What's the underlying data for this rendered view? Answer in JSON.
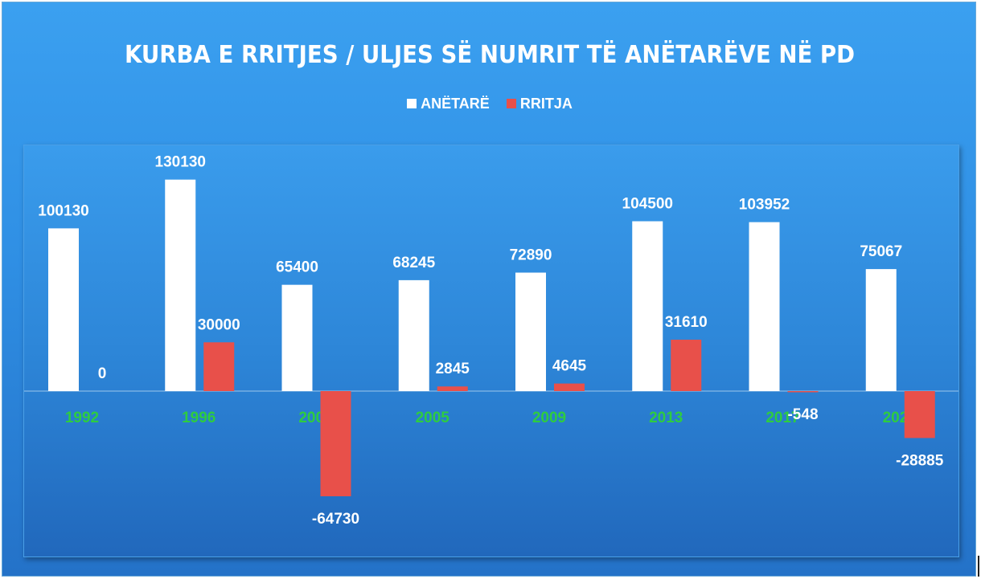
{
  "chart_data": {
    "type": "bar",
    "title": "KURBA E RRITJES / ULJES SË NUMRIT TË ANËTARËVE NË PD",
    "categories": [
      "1992",
      "1996",
      "2001",
      "2005",
      "2009",
      "2013",
      "2017",
      "2021"
    ],
    "series": [
      {
        "name": "ANËTARË",
        "values": [
          100130,
          130130,
          65400,
          68245,
          72890,
          104500,
          103952,
          75067
        ],
        "color": "#ffffff"
      },
      {
        "name": "RRITJA",
        "values": [
          0,
          30000,
          -64730,
          2845,
          4645,
          31610,
          -548,
          -28885
        ],
        "color": "#e8504a"
      }
    ],
    "ylim": [
      -100000,
      150000
    ],
    "legend_position": "top",
    "grid": false,
    "tick_color": "#2ecc40",
    "xlabel": "",
    "ylabel": ""
  }
}
